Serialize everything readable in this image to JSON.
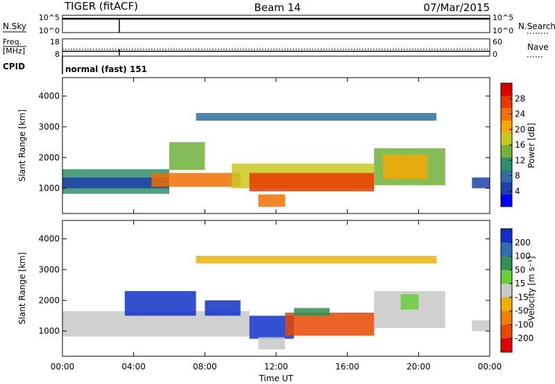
{
  "header": {
    "title": "TIGER (fitACF)",
    "beam": "Beam 14",
    "date": "07/Mar/2015"
  },
  "side_labels": {
    "nsky": "N.Sky",
    "nsearch": "N.Search",
    "freq_line1": "Freq.",
    "freq_line2": "[MHz]",
    "nave": "Nave",
    "cpid": "CPID",
    "cpid_value": "normal (fast) 151"
  },
  "colors": {
    "power_scale": [
      "#0000ff",
      "#1c3fa8",
      "#2e6fa0",
      "#2f8f6a",
      "#6eb23b",
      "#c8c81e",
      "#f5a800",
      "#f07000",
      "#e83a00",
      "#e00000"
    ],
    "velocity_scale": [
      "#1030c8",
      "#2f6fb0",
      "#2f9050",
      "#6acd3a",
      "#c8c8c8",
      "#f0b000",
      "#f08000",
      "#e84800",
      "#e00000"
    ],
    "ground_scatter": "#c8c8c8"
  },
  "chart_data": [
    {
      "type": "line",
      "title": "N.Sky / N.Search",
      "yticks_left": [
        "10^5",
        "10^0"
      ],
      "yticks_right": [
        "10^5",
        "10^0"
      ]
    },
    {
      "type": "line",
      "title": "Freq. / Nave",
      "yticks_left": [
        "18",
        "8"
      ],
      "yticks_right": [
        "60",
        "0"
      ]
    },
    {
      "type": "heatmap",
      "title": "Power",
      "ylabel": "Slant Range [km]",
      "ylim": [
        180,
        4600
      ],
      "yticks": [
        1000,
        2000,
        3000,
        4000
      ],
      "xlim": [
        0,
        24
      ],
      "colorbar_label": "Power [dB]",
      "colorbar_ticks": [
        "4",
        "8",
        "12",
        "16",
        "20",
        "24",
        "28"
      ],
      "colorbar_range": [
        0,
        32
      ],
      "bands": [
        {
          "x0": 0.0,
          "x1": 6.0,
          "y0": 820,
          "y1": 1620,
          "color": "#2f8f6a"
        },
        {
          "x0": 0.0,
          "x1": 6.0,
          "y0": 1000,
          "y1": 1350,
          "color": "#1c3fa8"
        },
        {
          "x0": 5.0,
          "x1": 10.0,
          "y0": 1050,
          "y1": 1500,
          "color": "#f07000"
        },
        {
          "x0": 9.5,
          "x1": 17.5,
          "y0": 1000,
          "y1": 1800,
          "color": "#c8c81e"
        },
        {
          "x0": 10.5,
          "x1": 17.5,
          "y0": 900,
          "y1": 1500,
          "color": "#e83a00"
        },
        {
          "x0": 17.5,
          "x1": 21.5,
          "y0": 1100,
          "y1": 2300,
          "color": "#6eb23b"
        },
        {
          "x0": 18.0,
          "x1": 20.5,
          "y0": 1300,
          "y1": 2100,
          "color": "#f5a800"
        },
        {
          "x0": 23.0,
          "x1": 24.0,
          "y0": 1000,
          "y1": 1350,
          "color": "#1c3fa8"
        },
        {
          "x0": 11.0,
          "x1": 12.5,
          "y0": 400,
          "y1": 800,
          "color": "#f07000"
        },
        {
          "x0": 6.0,
          "x1": 8.0,
          "y0": 1600,
          "y1": 2500,
          "color": "#6eb23b"
        },
        {
          "x0": 7.5,
          "x1": 21.0,
          "y0": 3200,
          "y1": 3450,
          "color": "#2e6fa0"
        }
      ]
    },
    {
      "type": "heatmap",
      "title": "Velocity",
      "ylabel": "Slant Range [km]",
      "xlabel": "Time UT",
      "ylim": [
        180,
        4600
      ],
      "yticks": [
        1000,
        2000,
        3000,
        4000
      ],
      "xlim": [
        0,
        24
      ],
      "xticks": [
        "00:00",
        "04:00",
        "08:00",
        "12:00",
        "16:00",
        "20:00",
        "00:00"
      ],
      "colorbar_label": "Velocity [m s⁻¹]",
      "colorbar_ticks": [
        "200",
        "100",
        "50",
        "15",
        "-15",
        "-50",
        "-100",
        "-200"
      ],
      "colorbar_range": [
        -250,
        250
      ],
      "bands": [
        {
          "x0": 0.0,
          "x1": 10.5,
          "y0": 820,
          "y1": 1650,
          "color": "#c8c8c8"
        },
        {
          "x0": 10.5,
          "x1": 13.0,
          "y0": 750,
          "y1": 1500,
          "color": "#1030c8"
        },
        {
          "x0": 12.5,
          "x1": 17.5,
          "y0": 850,
          "y1": 1600,
          "color": "#e84800"
        },
        {
          "x0": 13.0,
          "x1": 15.0,
          "y0": 1500,
          "y1": 1750,
          "color": "#2f9050"
        },
        {
          "x0": 17.5,
          "x1": 21.5,
          "y0": 1100,
          "y1": 2300,
          "color": "#c8c8c8"
        },
        {
          "x0": 19.0,
          "x1": 20.0,
          "y0": 1700,
          "y1": 2200,
          "color": "#6acd3a"
        },
        {
          "x0": 23.0,
          "x1": 24.0,
          "y0": 1000,
          "y1": 1350,
          "color": "#c8c8c8"
        },
        {
          "x0": 3.5,
          "x1": 7.5,
          "y0": 1500,
          "y1": 2300,
          "color": "#1030c8"
        },
        {
          "x0": 8.0,
          "x1": 10.0,
          "y0": 1500,
          "y1": 2000,
          "color": "#1030c8"
        },
        {
          "x0": 11.0,
          "x1": 12.5,
          "y0": 400,
          "y1": 800,
          "color": "#c8c8c8"
        },
        {
          "x0": 7.5,
          "x1": 21.0,
          "y0": 3200,
          "y1": 3450,
          "color": "#f0b000"
        }
      ]
    }
  ]
}
